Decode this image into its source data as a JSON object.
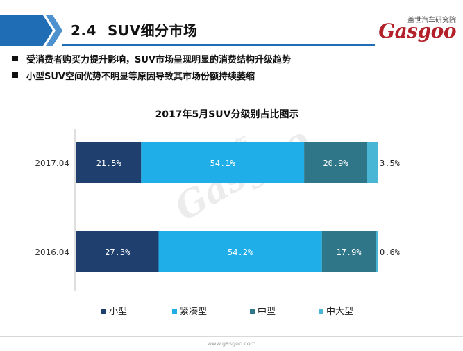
{
  "header": {
    "section_number": "2.4",
    "section_title": "SUV细分市场",
    "logo_cn": "盖世汽车研究院",
    "logo_brand": "Gasgoo"
  },
  "bullets": [
    "受消费者购买力提升影响，SUV市场呈现明显的消费结构升级趋势",
    "小型SUV空间优势不明显等原因导致其市场份额持续萎缩"
  ],
  "footer": {
    "url": "www.gasgoo.com"
  },
  "watermark": {
    "cn": "盖世汽车",
    "brand": "Gasgoo"
  },
  "colors": {
    "header_band": "#1f6eb5",
    "header_band_light": "#4d92cf",
    "series": [
      "#1f3f6e",
      "#1faee8",
      "#2e7688",
      "#4ab6d6"
    ]
  },
  "chart_data": {
    "type": "bar",
    "orientation": "horizontal",
    "stacked": true,
    "percent": true,
    "title": "2017年5月SUV分级别占比图示",
    "categories": [
      "2017.04",
      "2016.04"
    ],
    "series": [
      {
        "name": "小型",
        "values": [
          21.5,
          27.3
        ],
        "labels": [
          "21.5%",
          "27.3%"
        ]
      },
      {
        "name": "紧凑型",
        "values": [
          54.1,
          54.2
        ],
        "labels": [
          "54.1%",
          "54.2%"
        ]
      },
      {
        "name": "中型",
        "values": [
          20.9,
          17.9
        ],
        "labels": [
          "20.9%",
          "17.9%"
        ]
      },
      {
        "name": "中大型",
        "values": [
          3.5,
          0.6
        ],
        "labels": [
          "3.5%",
          "0.6%"
        ]
      }
    ],
    "xlim": [
      0,
      100
    ],
    "grid": false,
    "legend": "bottom"
  }
}
